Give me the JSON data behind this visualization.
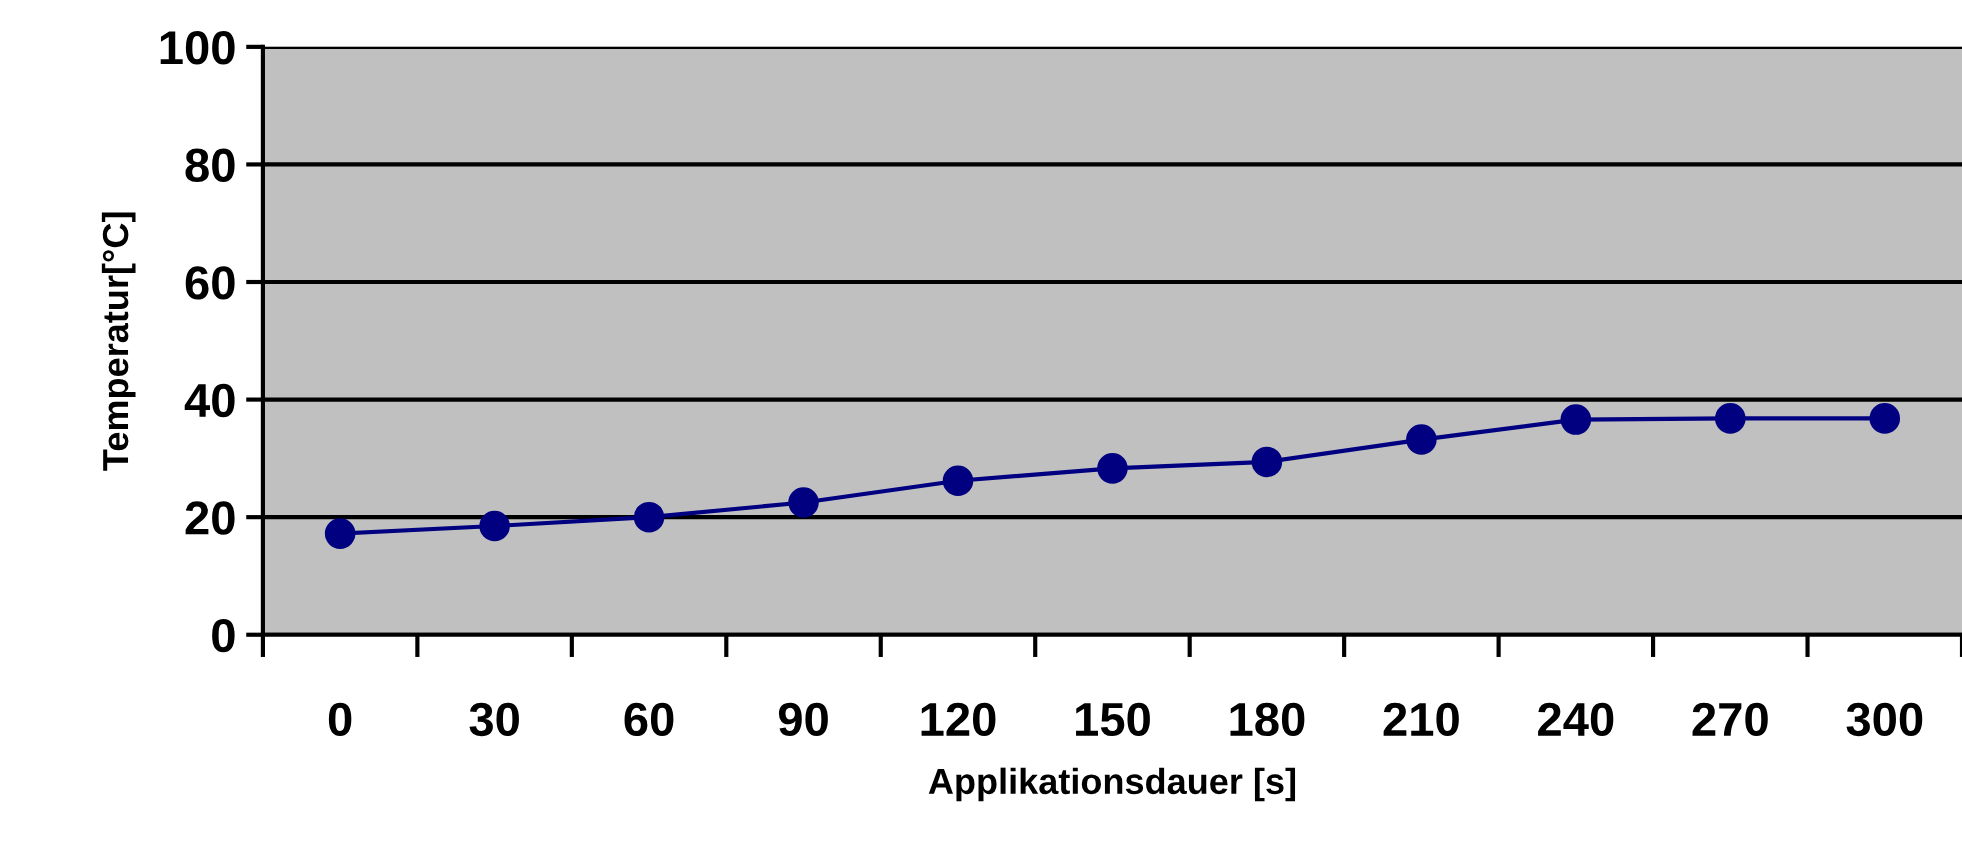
{
  "chart_data": {
    "type": "line",
    "xlabel": "Applikationsdauer [s]",
    "ylabel": "Temperatur[°C]",
    "categories": [
      "0",
      "30",
      "60",
      "90",
      "120",
      "150",
      "180",
      "210",
      "240",
      "270",
      "300"
    ],
    "series": [
      {
        "color": "#000080",
        "values": [
          17.2,
          18.5,
          20,
          22.5,
          26.2,
          28.3,
          29.4,
          33.2,
          36.6,
          36.8,
          36.8
        ]
      }
    ],
    "ylim": [
      0,
      100
    ],
    "yticks": [
      0,
      20,
      40,
      60,
      80,
      100
    ],
    "grid": "y",
    "marker": "circle",
    "line_style": "solid",
    "legend": false
  }
}
